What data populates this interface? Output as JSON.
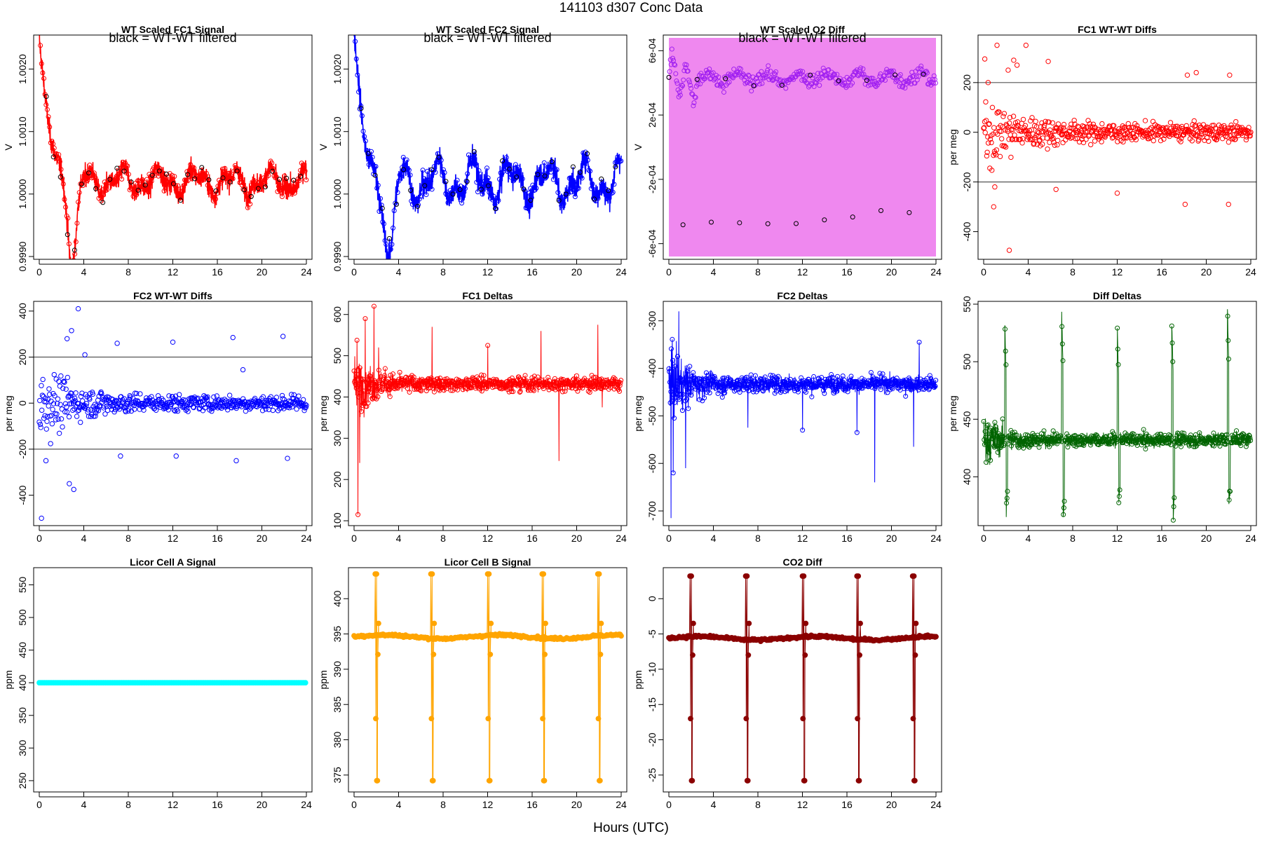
{
  "page": {
    "title": "141103    d307    Conc Data",
    "xlabel": "Hours (UTC)"
  },
  "chart_data": [
    {
      "id": "p1",
      "type": "line",
      "title": "WT Scaled FC1 Signal",
      "annotation": "black = WT-WT filtered",
      "ylabel": "V",
      "xlim": [
        0,
        24
      ],
      "ylim": [
        0.999,
        1.0025
      ],
      "xticks": [
        0,
        4,
        8,
        12,
        16,
        20,
        24
      ],
      "yticks": [
        0.999,
        1.0,
        1.001,
        1.002
      ],
      "ytick_labels": [
        "0.9990",
        "1.0000",
        "1.0010",
        "1.0020"
      ],
      "color": "#ff0000",
      "filtered_color": "#000000",
      "series": [
        {
          "name": "signal",
          "gen": "decay",
          "base": 1.0002,
          "amp": 0.0023,
          "tau": 0.8,
          "noise": 0.00012,
          "waveAmp": 0.00015,
          "dipAt": 3.0,
          "dipAmp": -0.0014,
          "n": 1400,
          "style": "band"
        }
      ]
    },
    {
      "id": "p2",
      "type": "line",
      "title": "WT Scaled FC2 Signal",
      "annotation": "black = WT-WT filtered",
      "ylabel": "V",
      "xlim": [
        0,
        24
      ],
      "ylim": [
        0.999,
        1.0025
      ],
      "xticks": [
        0,
        4,
        8,
        12,
        16,
        20,
        24
      ],
      "yticks": [
        0.999,
        1.0,
        1.001,
        1.002
      ],
      "ytick_labels": [
        "0.9990",
        "1.0000",
        "1.0010",
        "1.0020"
      ],
      "color": "#0000ff",
      "filtered_color": "#000000",
      "series": [
        {
          "name": "signal",
          "gen": "decay",
          "base": 1.0002,
          "amp": 0.0025,
          "tau": 0.6,
          "noise": 0.00014,
          "waveAmp": 0.00025,
          "dipAt": 3.2,
          "dipAmp": -0.0013,
          "n": 1400,
          "style": "band"
        }
      ]
    },
    {
      "id": "p3",
      "type": "line",
      "title": "WT Scaled O2 Diff",
      "annotation": "black = WT-WT filtered",
      "ylabel": "V",
      "xlim": [
        0,
        24
      ],
      "ylim": [
        -0.00068,
        0.00068
      ],
      "xticks": [
        0,
        4,
        8,
        12,
        16,
        20,
        24
      ],
      "yticks": [
        -0.0006,
        -0.0002,
        0.0002,
        0.0006
      ],
      "ytick_labels": [
        "-6e-04",
        "-2e-04",
        "2e-04",
        "6e-04"
      ],
      "color": "#ee82ee",
      "point_color": "#a020f0",
      "filtered_color": "#000000",
      "series": [
        {
          "name": "diff",
          "gen": "split",
          "levels": [
            0.00043,
            -0.00043
          ],
          "noise": 3e-05,
          "n": 700,
          "style": "fillband"
        }
      ]
    },
    {
      "id": "p4",
      "type": "scatter",
      "title": "FC1 WT-WT Diffs",
      "ylabel": "per meg",
      "xlim": [
        0,
        24
      ],
      "ylim": [
        -500,
        380
      ],
      "xticks": [
        0,
        4,
        8,
        12,
        16,
        20,
        24
      ],
      "yticks": [
        -400,
        -200,
        0,
        200
      ],
      "ytick_labels": [
        "-400",
        "-200",
        "0",
        "200"
      ],
      "hlines": [
        200,
        -200
      ],
      "color": "#ff0000",
      "series": [
        {
          "name": "diffs",
          "gen": "scatterdecay",
          "spread0": 140,
          "spread1": 30,
          "n": 520,
          "outliers": [
            [
              0.1,
              295
            ],
            [
              0.4,
              200
            ],
            [
              1.2,
              350
            ],
            [
              2.2,
              250
            ],
            [
              2.7,
              290
            ],
            [
              3.0,
              270
            ],
            [
              3.8,
              350
            ],
            [
              5.8,
              285
            ],
            [
              18.3,
              230
            ],
            [
              19.1,
              240
            ],
            [
              22.1,
              230
            ],
            [
              0.9,
              -300
            ],
            [
              2.3,
              -475
            ],
            [
              1.0,
              -220
            ],
            [
              18.1,
              -290
            ],
            [
              22.0,
              -290
            ],
            [
              12.0,
              -245
            ],
            [
              6.5,
              -230
            ]
          ]
        }
      ]
    },
    {
      "id": "p5",
      "type": "scatter",
      "title": "FC2 WT-WT Diffs",
      "ylabel": "per meg",
      "xlim": [
        0,
        24
      ],
      "ylim": [
        -520,
        430
      ],
      "xticks": [
        0,
        4,
        8,
        12,
        16,
        20,
        24
      ],
      "yticks": [
        -400,
        -200,
        0,
        200,
        400
      ],
      "ytick_labels": [
        "-400",
        "-200",
        "0",
        "200",
        "400"
      ],
      "hlines": [
        200,
        -200
      ],
      "color": "#0000ff",
      "series": [
        {
          "name": "diffs",
          "gen": "scatterdecay",
          "spread0": 150,
          "spread1": 30,
          "n": 520,
          "outliers": [
            [
              0.2,
              -500
            ],
            [
              0.6,
              -250
            ],
            [
              2.7,
              -350
            ],
            [
              3.1,
              -375
            ],
            [
              3.5,
              410
            ],
            [
              4.1,
              210
            ],
            [
              2.5,
              280
            ],
            [
              2.9,
              315
            ],
            [
              7.0,
              260
            ],
            [
              12.0,
              265
            ],
            [
              17.4,
              285
            ],
            [
              18.3,
              145
            ],
            [
              21.9,
              290
            ],
            [
              22.3,
              -240
            ],
            [
              17.7,
              -250
            ],
            [
              7.3,
              -230
            ],
            [
              12.3,
              -230
            ]
          ]
        }
      ]
    },
    {
      "id": "p6",
      "type": "line",
      "title": "FC1 Deltas",
      "ylabel": "per meg",
      "xlim": [
        0,
        24
      ],
      "ylim": [
        95,
        625
      ],
      "xticks": [
        0,
        4,
        8,
        12,
        16,
        20,
        24
      ],
      "yticks": [
        100,
        200,
        300,
        400,
        500,
        600
      ],
      "ytick_labels": [
        "100",
        "200",
        "300",
        "400",
        "500",
        "600"
      ],
      "color": "#ff0000",
      "series": [
        {
          "name": "deltas",
          "gen": "noisyline",
          "base": 432,
          "noise": 12,
          "early": 55,
          "n": 1100,
          "spikes": [
            [
              0.35,
              115
            ],
            [
              0.5,
              240
            ],
            [
              1.0,
              590
            ],
            [
              1.8,
              620
            ],
            [
              2.2,
              520
            ],
            [
              7.0,
              570
            ],
            [
              12.0,
              525
            ],
            [
              16.8,
              560
            ],
            [
              18.4,
              245
            ],
            [
              21.9,
              575
            ],
            [
              22.3,
              375
            ]
          ]
        }
      ]
    },
    {
      "id": "p7",
      "type": "line",
      "title": "FC2 Deltas",
      "ylabel": "per meg",
      "xlim": [
        0,
        24
      ],
      "ylim": [
        -725,
        -265
      ],
      "xticks": [
        0,
        4,
        8,
        12,
        16,
        20,
        24
      ],
      "yticks": [
        -700,
        -600,
        -500,
        -400,
        -300
      ],
      "ytick_labels": [
        "-700",
        "-600",
        "-500",
        "-400",
        "-300"
      ],
      "color": "#0000ff",
      "series": [
        {
          "name": "deltas",
          "gen": "noisyline",
          "base": -433,
          "noise": 12,
          "early": 55,
          "n": 1100,
          "spikes": [
            [
              0.2,
              -715
            ],
            [
              0.4,
              -620
            ],
            [
              0.9,
              -280
            ],
            [
              1.5,
              -610
            ],
            [
              7.1,
              -525
            ],
            [
              12.0,
              -530
            ],
            [
              16.9,
              -535
            ],
            [
              18.5,
              -640
            ],
            [
              22.0,
              -565
            ],
            [
              22.5,
              -345
            ]
          ]
        }
      ]
    },
    {
      "id": "p8",
      "type": "line",
      "title": "Diff Deltas",
      "ylabel": "per meg",
      "xlim": [
        0,
        24
      ],
      "ylim": [
        360,
        550
      ],
      "xticks": [
        0,
        4,
        8,
        12,
        16,
        20,
        24
      ],
      "yticks": [
        400,
        450,
        500,
        550
      ],
      "ytick_labels": [
        "400",
        "450",
        "500",
        "550"
      ],
      "color": "#006400",
      "series": [
        {
          "name": "deltas",
          "gen": "noisyline",
          "base": 432,
          "noise": 4,
          "early": 14,
          "n": 1100,
          "bursts": [
            [
              1.9,
              535,
              372
            ],
            [
              7.0,
              540,
              365
            ],
            [
              12.0,
              528,
              380
            ],
            [
              16.9,
              532,
              368
            ],
            [
              21.9,
              545,
              375
            ]
          ]
        }
      ]
    },
    {
      "id": "p9",
      "type": "line",
      "title": "Licor Cell A Signal",
      "ylabel": "ppm",
      "xlim": [
        0,
        24
      ],
      "ylim": [
        237,
        572
      ],
      "xticks": [
        0,
        4,
        8,
        12,
        16,
        20,
        24
      ],
      "yticks": [
        250,
        300,
        350,
        400,
        450,
        500,
        550
      ],
      "ytick_labels": [
        "250",
        "300",
        "350",
        "400",
        "450",
        "500",
        "550"
      ],
      "color": "#00ffff",
      "series": [
        {
          "name": "cellA",
          "gen": "flat",
          "value": 400,
          "n": 300
        }
      ]
    },
    {
      "id": "p10",
      "type": "line",
      "title": "Licor Cell B Signal",
      "ylabel": "ppm",
      "xlim": [
        0,
        24
      ],
      "ylim": [
        373,
        404
      ],
      "xticks": [
        0,
        4,
        8,
        12,
        16,
        20,
        24
      ],
      "yticks": [
        375,
        380,
        385,
        390,
        395,
        400
      ],
      "ytick_labels": [
        "375",
        "380",
        "385",
        "390",
        "395",
        "400"
      ],
      "color": "#ffa500",
      "series": [
        {
          "name": "cellB",
          "gen": "calib",
          "base": 394.6,
          "wob": 0.25,
          "hi": 403.5,
          "lo": 374.2,
          "mid": [
            392.1,
            383,
            396.5
          ],
          "events": [
            1.9,
            6.9,
            12.0,
            16.9,
            21.9
          ],
          "n": 260
        }
      ]
    },
    {
      "id": "p11",
      "type": "line",
      "title": "CO2 Diff",
      "ylabel": "ppm",
      "xlim": [
        0,
        24
      ],
      "ylim": [
        -27,
        4
      ],
      "xticks": [
        0,
        4,
        8,
        12,
        16,
        20,
        24
      ],
      "yticks": [
        -25,
        -20,
        -15,
        -10,
        -5,
        0
      ],
      "ytick_labels": [
        "-25",
        "-20",
        "-15",
        "-10",
        "-5",
        "0"
      ],
      "color": "#8b0000",
      "series": [
        {
          "name": "co2diff",
          "gen": "calib",
          "base": -5.6,
          "wob": 0.25,
          "hi": 3.2,
          "lo": -25.8,
          "mid": [
            -8,
            -17,
            -3.5
          ],
          "events": [
            1.9,
            6.9,
            12.0,
            16.9,
            21.9
          ],
          "n": 260
        }
      ]
    }
  ]
}
